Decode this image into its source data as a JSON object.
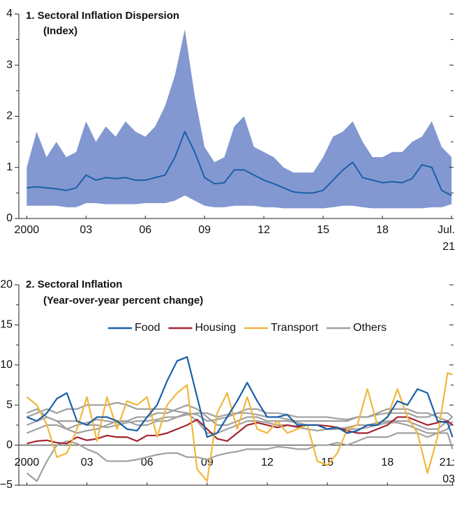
{
  "chart_data": [
    {
      "type": "line",
      "title": "1. Sectoral Inflation Dispersion",
      "subtitle": "(Index)",
      "x": [
        2000,
        2000.5,
        2001,
        2001.5,
        2002,
        2002.5,
        2003,
        2003.5,
        2004,
        2004.5,
        2005,
        2005.5,
        2006,
        2006.5,
        2007,
        2007.5,
        2008,
        2008.5,
        2009,
        2009.5,
        2010,
        2010.5,
        2011,
        2011.5,
        2012,
        2012.5,
        2013,
        2013.5,
        2014,
        2014.5,
        2015,
        2015.5,
        2016,
        2016.5,
        2017,
        2017.5,
        2018,
        2018.5,
        2019,
        2019.5,
        2020,
        2020.5,
        2021,
        2021.5
      ],
      "band": {
        "color": "#8398d1",
        "upper": [
          1.0,
          1.7,
          1.2,
          1.5,
          1.2,
          1.3,
          1.9,
          1.5,
          1.8,
          1.6,
          1.9,
          1.7,
          1.6,
          1.8,
          2.2,
          2.8,
          3.7,
          2.4,
          1.4,
          1.1,
          1.2,
          1.8,
          2.0,
          1.4,
          1.3,
          1.2,
          1.0,
          0.9,
          0.9,
          0.9,
          1.2,
          1.6,
          1.7,
          1.9,
          1.5,
          1.2,
          1.2,
          1.3,
          1.3,
          1.5,
          1.6,
          1.9,
          1.4,
          1.2
        ],
        "lower": [
          0.25,
          0.25,
          0.25,
          0.25,
          0.22,
          0.22,
          0.3,
          0.3,
          0.28,
          0.28,
          0.28,
          0.28,
          0.3,
          0.3,
          0.3,
          0.35,
          0.45,
          0.35,
          0.25,
          0.22,
          0.22,
          0.25,
          0.25,
          0.25,
          0.22,
          0.22,
          0.2,
          0.2,
          0.2,
          0.2,
          0.2,
          0.22,
          0.25,
          0.25,
          0.22,
          0.2,
          0.2,
          0.2,
          0.2,
          0.2,
          0.2,
          0.22,
          0.22,
          0.28
        ]
      },
      "series": [
        {
          "color": "#1a5fa8",
          "values": [
            0.6,
            0.62,
            0.6,
            0.58,
            0.55,
            0.6,
            0.85,
            0.75,
            0.8,
            0.78,
            0.8,
            0.75,
            0.75,
            0.8,
            0.85,
            1.2,
            1.7,
            1.3,
            0.8,
            0.68,
            0.7,
            0.95,
            0.95,
            0.85,
            0.75,
            0.68,
            0.6,
            0.52,
            0.5,
            0.5,
            0.55,
            0.75,
            0.95,
            1.1,
            0.8,
            0.75,
            0.7,
            0.72,
            0.7,
            0.78,
            1.05,
            1.0,
            0.55,
            0.45
          ]
        }
      ],
      "xlim": [
        1999.6,
        2021.6
      ],
      "xticks": [
        2000,
        {
          "value": 2003,
          "label": "03"
        },
        {
          "value": 2006,
          "label": "06"
        },
        {
          "value": 2009,
          "label": "09"
        },
        {
          "value": 2012,
          "label": "12"
        },
        {
          "value": 2015,
          "label": "15"
        },
        {
          "value": 2018,
          "label": "18"
        },
        {
          "value": 2021.5,
          "label": "Jul.\n21"
        }
      ],
      "ylim": [
        0,
        4
      ],
      "yticks": [
        0,
        1,
        2,
        3,
        4
      ]
    },
    {
      "type": "line",
      "title": "2. Sectoral Inflation",
      "subtitle": "(Year-over-year percent change)",
      "legend": "top",
      "x": [
        2000,
        2000.5,
        2001,
        2001.5,
        2002,
        2002.5,
        2003,
        2003.5,
        2004,
        2004.5,
        2005,
        2005.5,
        2006,
        2006.5,
        2007,
        2007.5,
        2008,
        2008.5,
        2009,
        2009.5,
        2010,
        2010.5,
        2011,
        2011.5,
        2012,
        2012.5,
        2013,
        2013.5,
        2014,
        2014.5,
        2015,
        2015.5,
        2016,
        2016.5,
        2017,
        2017.5,
        2018,
        2018.5,
        2019,
        2019.5,
        2020,
        2020.5,
        2021,
        2021.25
      ],
      "series": [
        {
          "name": "Others",
          "color": "#a0a0a0",
          "values": [
            -3.5,
            -4.5,
            -2,
            0,
            0.5,
            0.2,
            -0.5,
            -1,
            -2,
            -2,
            -2,
            -1.8,
            -1.5,
            -1.2,
            -1,
            -1,
            -1.5,
            -1.5,
            -1.8,
            -1.3,
            -1,
            -0.8,
            -0.5,
            -0.5,
            -0.5,
            -0.2,
            -0.3,
            -0.5,
            -0.5,
            0,
            0,
            0.3,
            0,
            0.5,
            1,
            1,
            1,
            1.5,
            1.5,
            1.5,
            1,
            1.5,
            1.5,
            -0.5
          ]
        },
        {
          "color": "#a0a0a0",
          "values": [
            3.5,
            4,
            4.5,
            4,
            4.5,
            4.5,
            5,
            5,
            5,
            5.3,
            5,
            4.5,
            4.5,
            4.5,
            4.5,
            4.2,
            4,
            3.8,
            3,
            3.2,
            3.5,
            4,
            4,
            3.8,
            3.5,
            3.5,
            3.2,
            3,
            3,
            3,
            3,
            3,
            3,
            3.5,
            3.5,
            4,
            4.5,
            4.5,
            4.5,
            4,
            4,
            3.5,
            3,
            2.5
          ]
        },
        {
          "color": "#a0a0a0",
          "values": [
            2.5,
            3,
            3.5,
            3,
            2,
            2.5,
            2.8,
            3.2,
            3,
            2.8,
            3,
            3.5,
            3.5,
            4,
            4,
            4.5,
            5,
            4.5,
            3.5,
            2.5,
            2.5,
            3,
            3.5,
            3.5,
            3,
            3,
            3,
            2.8,
            2.5,
            2.5,
            2,
            2,
            2.2,
            2.5,
            2.5,
            2.8,
            3,
            3,
            3,
            2.5,
            2,
            2,
            3,
            3.5
          ]
        },
        {
          "color": "#a0a0a0",
          "values": [
            1.5,
            2,
            2.5,
            2.5,
            2,
            1.5,
            1.8,
            2,
            2.5,
            3,
            3,
            2.5,
            2.5,
            3,
            3,
            3.5,
            4,
            3,
            1.5,
            1.5,
            2,
            2.5,
            3,
            3,
            2.8,
            2.5,
            2.5,
            2.2,
            2,
            1.8,
            2,
            2,
            2,
            2,
            2.2,
            2.5,
            2.8,
            2.8,
            2.5,
            2,
            1.5,
            1.5,
            2,
            3
          ]
        },
        {
          "color": "#a0a0a0",
          "values": [
            4,
            4.5,
            3.5,
            3,
            3,
            3,
            2.5,
            2.5,
            2.2,
            2.5,
            2.8,
            3,
            3,
            3.2,
            3.5,
            3.5,
            3.8,
            4,
            4,
            3.5,
            3.8,
            4,
            4.5,
            4.5,
            4,
            4,
            3.8,
            3.5,
            3.5,
            3.5,
            3.5,
            3.3,
            3.2,
            3.5,
            3.5,
            3.8,
            4,
            4,
            4,
            3.5,
            3.5,
            4,
            4,
            3.5
          ]
        },
        {
          "name": "Housing",
          "color": "#a32430",
          "values": [
            0.2,
            0.5,
            0.6,
            0.3,
            0.2,
            1.0,
            0.6,
            0.8,
            1.2,
            1.0,
            1.0,
            0.5,
            1.2,
            1.2,
            1.5,
            2.0,
            2.5,
            3.2,
            2.0,
            0.8,
            0.5,
            1.5,
            2.5,
            2.8,
            2.5,
            2.2,
            2.5,
            2.3,
            2.5,
            2.5,
            2.4,
            2.2,
            1.8,
            1.5,
            1.5,
            2.0,
            2.5,
            3.5,
            3.5,
            3.0,
            2.5,
            2.8,
            3.0,
            2.5
          ]
        },
        {
          "name": "Transport",
          "color": "#f2b63c",
          "values": [
            6,
            5,
            2.5,
            -1.5,
            -1,
            2,
            6,
            0.5,
            6,
            2,
            5.5,
            5,
            6,
            1,
            5,
            6.5,
            7.5,
            -3,
            -4.5,
            4,
            6.5,
            2,
            6,
            2,
            1.5,
            3,
            1.5,
            2,
            2.5,
            -2,
            -2.5,
            -1,
            2,
            2.5,
            7,
            2.5,
            3.5,
            7,
            3.5,
            1.5,
            -3.5,
            1,
            9.0,
            8.8
          ]
        },
        {
          "name": "Food",
          "color": "#1a5fa8",
          "values": [
            3.5,
            3.0,
            4.0,
            5.8,
            6.5,
            3.0,
            2.5,
            3.5,
            3.5,
            3.0,
            2.0,
            1.8,
            3.5,
            5.0,
            8.0,
            10.5,
            11.0,
            6.0,
            1.0,
            1.5,
            3.5,
            5.5,
            7.8,
            5.5,
            3.5,
            3.5,
            3.8,
            2.5,
            2.5,
            2.5,
            2.0,
            2.2,
            1.5,
            1.8,
            2.5,
            2.5,
            3.5,
            5.5,
            5.0,
            7.0,
            6.5,
            3.0,
            2.8,
            1.0
          ]
        }
      ],
      "legend_order": [
        "Food",
        "Housing",
        "Transport",
        "Others"
      ],
      "xlim": [
        1999.6,
        2021.3
      ],
      "xticks": [
        2000,
        {
          "value": 2003,
          "label": "03"
        },
        {
          "value": 2006,
          "label": "06"
        },
        {
          "value": 2009,
          "label": "09"
        },
        {
          "value": 2012,
          "label": "12"
        },
        {
          "value": 2015,
          "label": "15"
        },
        {
          "value": 2018,
          "label": "18"
        },
        {
          "value": 2021.25,
          "label": "21:\n03"
        }
      ],
      "ylim": [
        -5,
        20
      ],
      "yticks": [
        {
          "value": -5,
          "label": "−5"
        },
        0,
        5,
        10,
        15,
        20
      ]
    }
  ]
}
